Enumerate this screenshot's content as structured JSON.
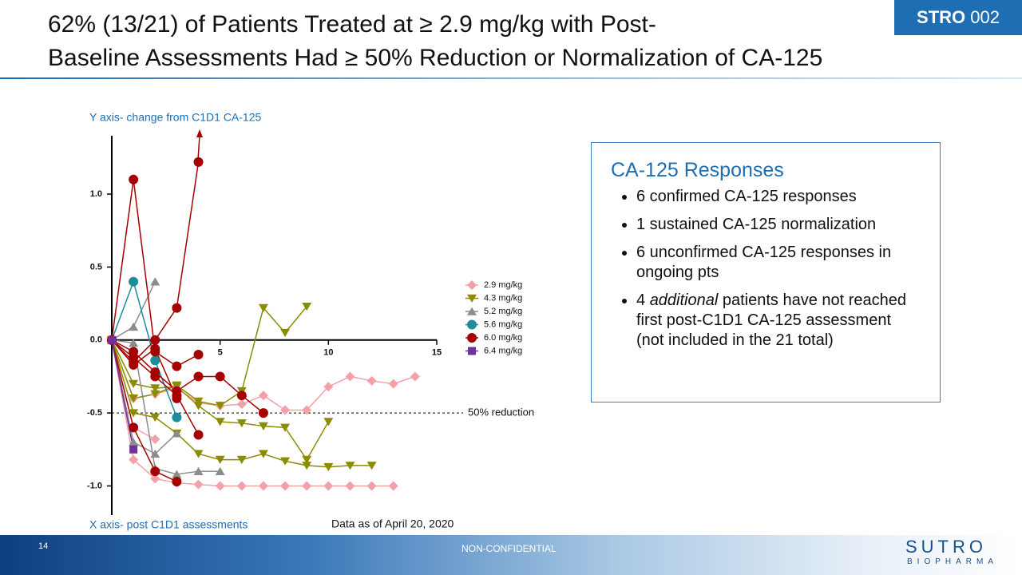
{
  "slide": {
    "title": [
      "62% (13/21) of Patients Treated at ≥ 2.9 mg/kg with Post-",
      "Baseline Assessments Had ≥ 50% Reduction or Normalization of CA-125"
    ],
    "badge": {
      "bold": "STRO",
      "light": "002"
    },
    "box": {
      "heading": "CA-125 Responses",
      "bullets": [
        [
          "6 confirmed CA-125 responses"
        ],
        [
          "1 sustained CA-125 normalization"
        ],
        [
          "6 unconfirmed CA-125 responses in ongoing pts"
        ],
        [
          "4 ",
          "additional",
          " patients have not reached first post-C1D1 CA-125 assessment (not included in the 21 total)"
        ]
      ]
    },
    "footer": {
      "page": "14",
      "label": "NON-CONFIDENTIAL",
      "logo": "SUTRO",
      "logo_sub": "BIOPHARMA"
    }
  },
  "chart_data": {
    "type": "line",
    "y_label": "Y axis- change from C1D1 CA-125",
    "x_label": "X axis- post C1D1 assessments",
    "note": "Data as of April 20, 2020",
    "reference_line": {
      "value": -0.5,
      "label": "50% reduction"
    },
    "xlim": [
      0,
      15
    ],
    "ylim": [
      -1.2,
      1.4
    ],
    "xticks": [
      5,
      10,
      15
    ],
    "yticks": [
      {
        "value": -1,
        "label": "-1.0"
      },
      -0.5,
      {
        "value": 0,
        "label": "0.0"
      },
      0.5,
      {
        "value": 1,
        "label": "1.0"
      }
    ],
    "series": [
      {
        "name": "2.9 mg/kg",
        "color": "#f4a0a8",
        "marker": "diamond",
        "patients": [
          {
            "x": [
              0,
              1,
              2,
              3,
              4,
              5,
              6,
              7,
              8,
              9,
              10,
              11,
              12,
              13
            ],
            "values": [
              0,
              -0.82,
              -0.95,
              -0.98,
              -0.99,
              -1,
              -1,
              -1,
              -1,
              -1,
              -1,
              -1,
              -1,
              -1
            ]
          },
          {
            "x": [
              0,
              1,
              2
            ],
            "values": [
              0,
              -0.6,
              -0.68
            ]
          },
          {
            "x": [
              0,
              1,
              2,
              3,
              4,
              5,
              6,
              7,
              8,
              9,
              10,
              11,
              12,
              13,
              14
            ],
            "values": [
              0,
              -0.4,
              -0.37,
              -0.33,
              -0.43,
              -0.45,
              -0.44,
              -0.38,
              -0.48,
              -0.48,
              -0.32,
              -0.25,
              -0.28,
              -0.3,
              -0.25
            ]
          }
        ]
      },
      {
        "name": "4.3 mg/kg",
        "color": "#8c8c00",
        "marker": "tri-down",
        "patients": [
          {
            "x": [
              0,
              1,
              2,
              3,
              4,
              5,
              6,
              7,
              8,
              9
            ],
            "values": [
              0,
              -0.4,
              -0.37,
              -0.31,
              -0.42,
              -0.45,
              -0.35,
              0.22,
              0.05,
              0.23
            ]
          },
          {
            "x": [
              0,
              1,
              2,
              3,
              4,
              5,
              6,
              7,
              8,
              9,
              10,
              11,
              12
            ],
            "values": [
              0,
              -0.5,
              -0.53,
              -0.64,
              -0.78,
              -0.82,
              -0.82,
              -0.78,
              -0.83,
              -0.86,
              -0.87,
              -0.86,
              -0.86
            ]
          },
          {
            "x": [
              0,
              1,
              2,
              3,
              4,
              5,
              6,
              7,
              8,
              9,
              10
            ],
            "values": [
              0,
              -0.3,
              -0.33,
              -0.32,
              -0.45,
              -0.56,
              -0.57,
              -0.59,
              -0.6,
              -0.82,
              -0.56
            ]
          }
        ]
      },
      {
        "name": "5.2 mg/kg",
        "color": "#8c8c8c",
        "marker": "tri-up",
        "patients": [
          {
            "x": [
              0,
              1,
              2
            ],
            "values": [
              0,
              0.09,
              0.4
            ]
          },
          {
            "x": [
              0,
              1,
              2,
              3
            ],
            "values": [
              0,
              -0.7,
              -0.78,
              -0.64
            ]
          },
          {
            "x": [
              0,
              1,
              2,
              3,
              4,
              5
            ],
            "values": [
              0,
              -0.02,
              -0.88,
              -0.92,
              -0.9,
              -0.9
            ]
          }
        ]
      },
      {
        "name": "5.6 mg/kg",
        "color": "#1e8c9c",
        "marker": "circle",
        "patients": [
          {
            "x": [
              0,
              1,
              2,
              3
            ],
            "values": [
              0,
              0.4,
              -0.14,
              -0.53
            ]
          }
        ]
      },
      {
        "name": "6.0 mg/kg",
        "color": "#a50000",
        "marker": "circle",
        "patients": [
          {
            "x": [
              0,
              1,
              2,
              3,
              4
            ],
            "values": [
              0,
              1.1,
              -0.08,
              -0.18,
              -0.1
            ]
          },
          {
            "x": [
              0,
              1,
              2,
              3,
              4
            ],
            "values": [
              0,
              -0.15,
              0,
              0.22,
              1.22
            ]
          },
          {
            "x": [
              0,
              1,
              2,
              3
            ],
            "values": [
              0,
              -0.6,
              -0.9,
              -0.97
            ]
          },
          {
            "x": [
              0,
              1,
              2,
              3,
              4,
              5,
              6,
              7
            ],
            "values": [
              0,
              -0.08,
              -0.22,
              -0.35,
              -0.25,
              -0.25,
              -0.38,
              -0.5
            ]
          },
          {
            "x": [
              0,
              1,
              2,
              3,
              4
            ],
            "values": [
              0,
              -0.12,
              -0.25,
              -0.38,
              -0.65
            ]
          },
          {
            "x": [
              0,
              1,
              2,
              3
            ],
            "values": [
              0,
              -0.17,
              -0.06,
              -0.4
            ]
          }
        ]
      },
      {
        "name": "6.4 mg/kg",
        "color": "#7030a0",
        "marker": "square",
        "patients": [
          {
            "x": [
              0,
              1
            ],
            "values": [
              0,
              -0.75
            ]
          }
        ]
      }
    ]
  }
}
